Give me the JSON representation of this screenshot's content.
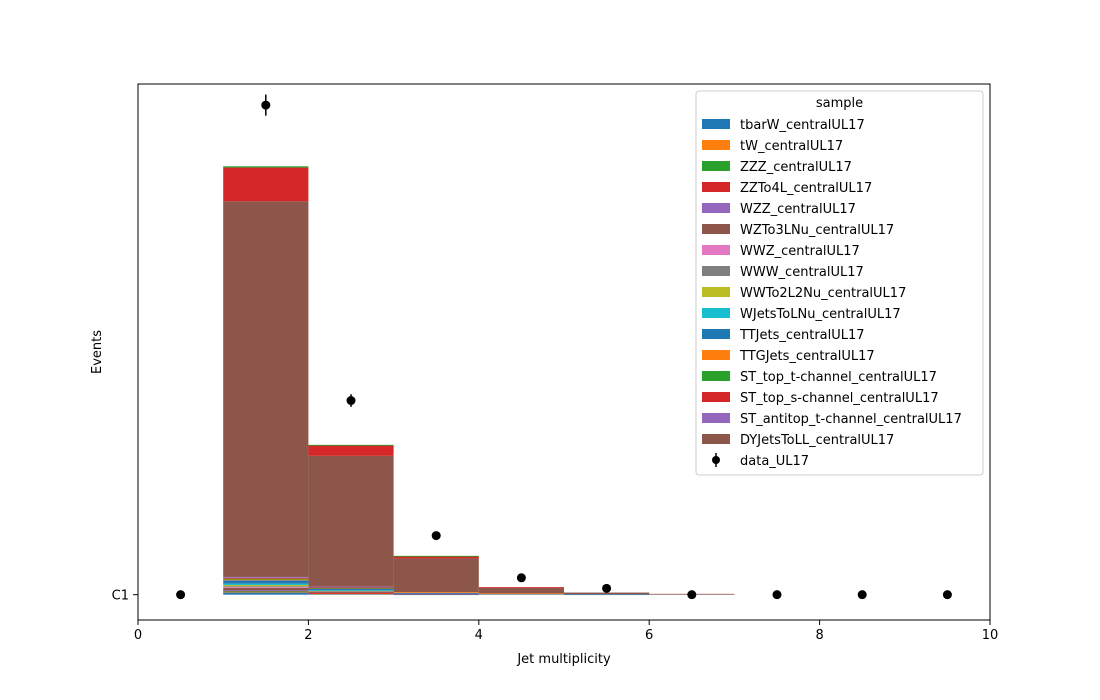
{
  "chart_data": {
    "type": "bar",
    "stacked": true,
    "histogram": true,
    "xlabel": "Jet multiplicity",
    "ylabel": "Events",
    "xlim": [
      0,
      10
    ],
    "ylim": [
      -0.6,
      12.1
    ],
    "x_ticks": [
      0,
      2,
      4,
      6,
      8,
      10
    ],
    "y_tick_values": [
      0
    ],
    "y_tick_labels": [
      "C1"
    ],
    "bin_edges": [
      0,
      1,
      2,
      3,
      4,
      5,
      6,
      7,
      8,
      9,
      10
    ],
    "legend": {
      "title": "sample",
      "position": "top-right"
    },
    "series": [
      {
        "name": "tbarW_centralUL17",
        "color": "#1f77b4",
        "values": [
          0,
          0.05,
          0.02,
          0.01,
          0,
          0,
          0,
          0,
          0,
          0
        ]
      },
      {
        "name": "tW_centralUL17",
        "color": "#ff7f0e",
        "values": [
          0,
          0.02,
          0.01,
          0,
          0,
          0,
          0,
          0,
          0,
          0
        ]
      },
      {
        "name": "ZZZ_centralUL17",
        "color": "#2ca02c",
        "values": [
          0,
          0.01,
          0,
          0,
          0,
          0,
          0,
          0,
          0,
          0
        ]
      },
      {
        "name": "ZZTo4L_centralUL17",
        "color": "#d62728",
        "values": [
          0,
          0.02,
          0.01,
          0,
          0,
          0,
          0,
          0,
          0,
          0
        ]
      },
      {
        "name": "WZZ_centralUL17",
        "color": "#9467bd",
        "values": [
          0,
          0.01,
          0,
          0,
          0,
          0,
          0,
          0,
          0,
          0
        ]
      },
      {
        "name": "WZTo3LNu_centralUL17",
        "color": "#8c564b",
        "values": [
          0,
          0.05,
          0.03,
          0.01,
          0,
          0,
          0,
          0,
          0,
          0
        ]
      },
      {
        "name": "WWZ_centralUL17",
        "color": "#e377c2",
        "values": [
          0,
          0.02,
          0.01,
          0.01,
          0,
          0,
          0,
          0,
          0,
          0
        ]
      },
      {
        "name": "WWW_centralUL17",
        "color": "#7f7f7f",
        "values": [
          0,
          0.02,
          0.01,
          0,
          0,
          0,
          0,
          0,
          0,
          0
        ]
      },
      {
        "name": "WWTo2L2Nu_centralUL17",
        "color": "#bcbd22",
        "values": [
          0,
          0.03,
          0.01,
          0,
          0,
          0,
          0,
          0,
          0,
          0
        ]
      },
      {
        "name": "WJetsToLNu_centralUL17",
        "color": "#17becf",
        "values": [
          0,
          0.03,
          0.01,
          0,
          0,
          0,
          0,
          0,
          0,
          0
        ]
      },
      {
        "name": "TTJets_centralUL17",
        "color": "#1f77b4",
        "values": [
          0,
          0.08,
          0.04,
          0.01,
          0.02,
          0.01,
          0,
          0,
          0,
          0
        ]
      },
      {
        "name": "TTGJets_centralUL17",
        "color": "#ff7f0e",
        "values": [
          0,
          0.02,
          0.01,
          0.02,
          0.01,
          0,
          0,
          0,
          0,
          0
        ]
      },
      {
        "name": "ST_top_t-channel_centralUL17",
        "color": "#2ca02c",
        "values": [
          0,
          0.02,
          0.01,
          0,
          0,
          0,
          0,
          0,
          0,
          0
        ]
      },
      {
        "name": "ST_top_s-channel_centralUL17",
        "color": "#d62728",
        "values": [
          0,
          0.02,
          0.01,
          0,
          0,
          0,
          0,
          0,
          0,
          0
        ]
      },
      {
        "name": "ST_antitop_t-channel_centralUL17",
        "color": "#9467bd",
        "values": [
          0,
          0.02,
          0.01,
          0,
          0,
          0,
          0,
          0,
          0,
          0
        ]
      },
      {
        "name": "DYJetsToLL_centralUL17",
        "color": "#8c564b",
        "values": [
          0,
          8.9,
          3.1,
          0.8,
          0.13,
          0.04,
          0.02,
          0,
          0,
          0
        ]
      },
      {
        "name": "ST_top_s-channel_centralUL17",
        "color": "#d62728",
        "legend": false,
        "values": [
          0,
          0.8,
          0.25,
          0.05,
          0.02,
          0,
          0,
          0,
          0,
          0
        ]
      },
      {
        "name": "ST_top_t-channel_centralUL17",
        "color": "#2ca02c",
        "legend": false,
        "values": [
          0,
          0.03,
          0.01,
          0.01,
          0,
          0,
          0,
          0,
          0,
          0
        ]
      }
    ],
    "data_series": {
      "name": "data_UL17",
      "color": "#000000",
      "x": [
        0.5,
        1.5,
        2.5,
        3.5,
        4.5,
        5.5,
        6.5,
        7.5,
        8.5,
        9.5
      ],
      "y": [
        0,
        11.6,
        4.6,
        1.4,
        0.4,
        0.15,
        0,
        0,
        0,
        0
      ],
      "yerr": [
        0,
        0.25,
        0.15,
        0.08,
        0.04,
        0.03,
        0,
        0,
        0,
        0
      ]
    }
  }
}
